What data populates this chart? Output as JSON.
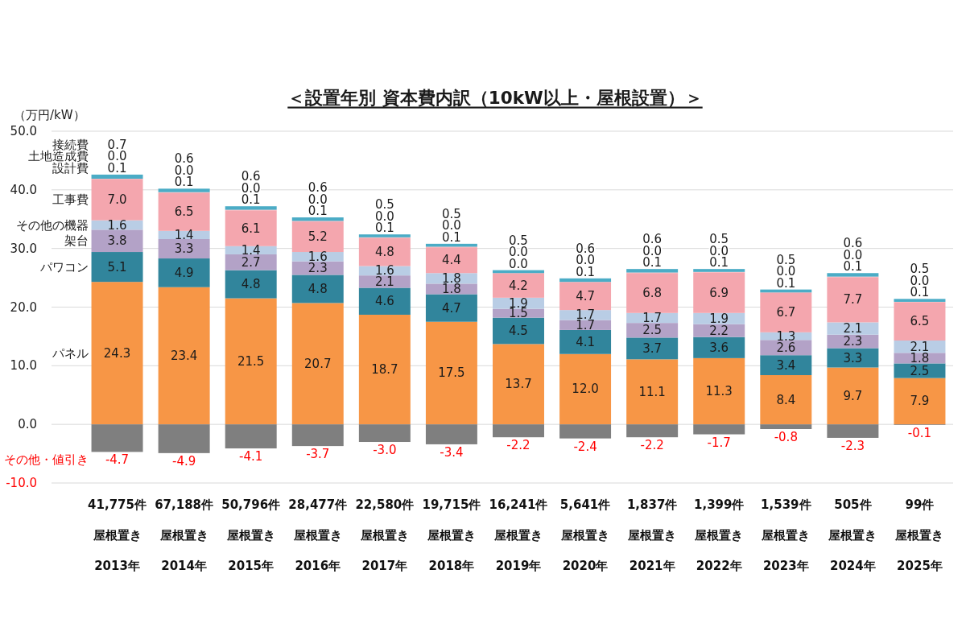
{
  "chart_data": {
    "type": "bar",
    "stacked": true,
    "title": "＜設置年別 資本費内訳（10kW以上・屋根設置）＞",
    "ylabel": "（万円/kW）",
    "categories": [
      "2013年",
      "2014年",
      "2015年",
      "2016年",
      "2017年",
      "2018年",
      "2019年",
      "2020年",
      "2021年",
      "2022年",
      "2023年",
      "2024年",
      "2025年"
    ],
    "annotations": [
      "41,775件",
      "67,188件",
      "50,796件",
      "28,477件",
      "22,580件",
      "19,715件",
      "16,241件",
      "5,641件",
      "1,837件",
      "1,399件",
      "1,539件",
      "505件",
      "99件",
      "屋根置き",
      "屋根置き",
      "屋根置き",
      "屋根置き",
      "屋根置き",
      "屋根置き",
      "屋根置き",
      "屋根置き",
      "屋根置き",
      "屋根置き",
      "屋根置き",
      "屋根置き",
      "屋根置き"
    ],
    "series": [
      {
        "name": "パネル",
        "color": "#f79646",
        "values": [
          24.3,
          23.4,
          21.5,
          20.7,
          18.7,
          17.5,
          13.7,
          12.0,
          11.1,
          11.3,
          8.4,
          9.7,
          7.9
        ],
        "value_labels": [
          "24.3",
          "23.4",
          "21.5",
          "20.7",
          "18.7",
          "17.5",
          "13.7",
          "12.0",
          "11.1",
          "11.3",
          "8.4",
          "9.7",
          "7.9"
        ]
      },
      {
        "name": "パワコン",
        "color": "#31859c",
        "values": [
          5.1,
          4.9,
          4.8,
          4.8,
          4.6,
          4.7,
          4.5,
          4.1,
          3.7,
          3.6,
          3.4,
          3.3,
          2.5
        ],
        "value_labels": [
          "5.1",
          "4.9",
          "4.8",
          "4.8",
          "4.6",
          "4.7",
          "4.5",
          "4.1",
          "3.7",
          "3.6",
          "3.4",
          "3.3",
          "2.5"
        ]
      },
      {
        "name": "架台",
        "color": "#b3a2c7",
        "values": [
          3.8,
          3.3,
          2.7,
          2.3,
          2.1,
          1.8,
          1.5,
          1.7,
          2.5,
          2.2,
          2.6,
          2.3,
          1.8
        ],
        "value_labels": [
          "3.8",
          "3.3",
          "2.7",
          "2.3",
          "2.1",
          "1.8",
          "1.5",
          "1.7",
          "2.5",
          "2.2",
          "2.6",
          "2.3",
          "1.8"
        ]
      },
      {
        "name": "その他の機器",
        "color": "#b9cde5",
        "values": [
          1.6,
          1.4,
          1.4,
          1.6,
          1.6,
          1.8,
          1.9,
          1.7,
          1.7,
          1.9,
          1.3,
          2.1,
          2.1
        ],
        "value_labels": [
          "1.6",
          "1.4",
          "1.4",
          "1.6",
          "1.6",
          "1.8",
          "1.9",
          "1.7",
          "1.7",
          "1.9",
          "1.3",
          "2.1",
          "2.1"
        ]
      },
      {
        "name": "工事費",
        "color": "#f4a6ae",
        "values": [
          7.0,
          6.5,
          6.1,
          5.2,
          4.8,
          4.4,
          4.2,
          4.7,
          6.8,
          6.9,
          6.7,
          7.7,
          6.5
        ],
        "value_labels": [
          "7.0",
          "6.5",
          "6.1",
          "5.2",
          "4.8",
          "4.4",
          "4.2",
          "4.7",
          "6.8",
          "6.9",
          "6.7",
          "7.7",
          "6.5"
        ]
      },
      {
        "name": "設計費",
        "color": "#f4a6ae",
        "values": [
          0.1,
          0.1,
          0.1,
          0.1,
          0.1,
          0.1,
          0.0,
          0.1,
          0.1,
          0.1,
          0.1,
          0.1,
          0.1
        ],
        "value_labels": [
          "0.1",
          "0.1",
          "0.1",
          "0.1",
          "0.1",
          "0.1",
          "0.0",
          "0.1",
          "0.1",
          "0.1",
          "0.1",
          "0.1",
          "0.1"
        ]
      },
      {
        "name": "土地造成費",
        "values": [
          0.0,
          0.0,
          0.0,
          0.0,
          0.0,
          0.0,
          0.0,
          0.0,
          0.0,
          0.0,
          0.0,
          0.0,
          0.0
        ],
        "value_labels": [
          "0.0",
          "0.0",
          "0.0",
          "0.0",
          "0.0",
          "0.0",
          "0.0",
          "0.0",
          "0.0",
          "0.0",
          "0.0",
          "0.0",
          "0.0"
        ]
      },
      {
        "name": "接続費",
        "color": "#4bacc6",
        "values": [
          0.7,
          0.6,
          0.6,
          0.6,
          0.5,
          0.5,
          0.5,
          0.6,
          0.6,
          0.5,
          0.5,
          0.6,
          0.5
        ],
        "value_labels": [
          "0.7",
          "0.6",
          "0.6",
          "0.6",
          "0.5",
          "0.5",
          "0.5",
          "0.6",
          "0.6",
          "0.5",
          "0.5",
          "0.6",
          "0.5"
        ]
      },
      {
        "name": "その他・値引き",
        "color": "#7f7f7f",
        "values": [
          -4.7,
          -4.9,
          -4.1,
          -3.7,
          -3.0,
          -3.4,
          -2.2,
          -2.4,
          -2.2,
          -1.7,
          -0.8,
          -2.3,
          -0.1
        ],
        "value_labels": [
          "-4.7",
          "-4.9",
          "-4.1",
          "-3.7",
          "-3.0",
          "-3.4",
          "-2.2",
          "-2.4",
          "-2.2",
          "-1.7",
          "-0.8",
          "-2.3",
          "-0.1"
        ]
      }
    ],
    "ylim": [
      -10,
      50
    ],
    "yticks": [
      {
        "value": -10,
        "label": "-10.0"
      },
      {
        "value": 0,
        "label": "0.0"
      },
      {
        "value": 10,
        "label": "10.0"
      },
      {
        "value": 20,
        "label": "20.0"
      },
      {
        "value": 30,
        "label": "30.0"
      },
      {
        "value": 40,
        "label": "40.0"
      },
      {
        "value": 50,
        "label": "50.0"
      }
    ],
    "grid": "y",
    "legend": false
  }
}
